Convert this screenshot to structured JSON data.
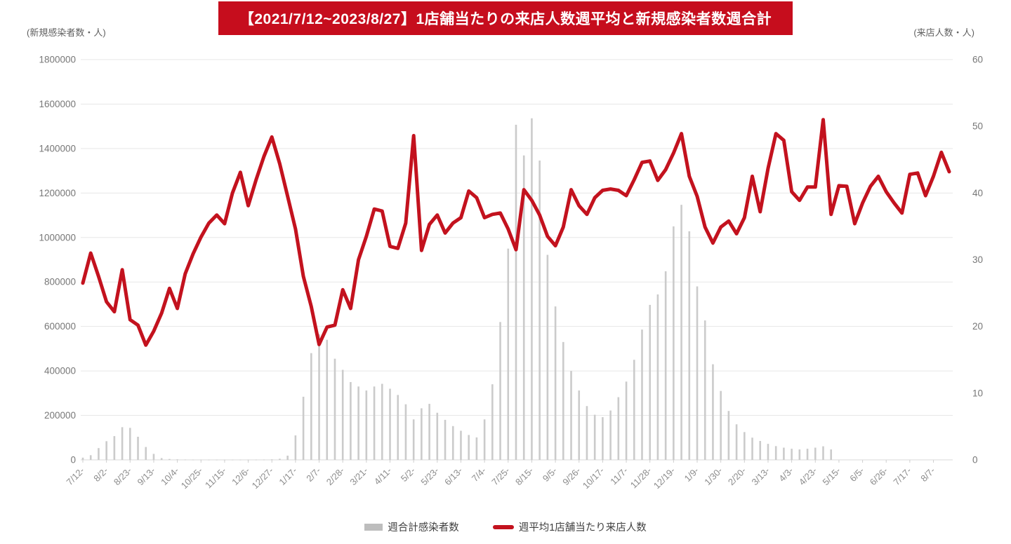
{
  "title": "【2021/7/12~2023/8/27】1店舗当たりの来店人数週平均と新規感染者数週合計",
  "colors": {
    "title_bg": "#c60d1d",
    "line_red": "#c3121e",
    "bar_gray": "#cbcbcb",
    "grid": "#e7e7e7",
    "axis_text": "#777777",
    "x_label_text": "#8c8c8c",
    "legend_text": "#3f3f3f"
  },
  "legend": {
    "bars_label": "週合計感染者数",
    "line_label": "週平均1店舗当たり来店人数"
  },
  "chart_data": {
    "type": "combo (bar + line, dual axis)",
    "title": "【2021/7/12~2023/8/27】1店舗当たりの来店人数週平均と新規感染者数週合計",
    "grid": true,
    "legend_position": "bottom",
    "n_weeks": 111,
    "x_tick_interval": 3,
    "x_tick_labels": [
      "7/12-",
      "8/2-",
      "8/23-",
      "9/13-",
      "10/4-",
      "10/25-",
      "11/15-",
      "12/6-",
      "12/27-",
      "1/17-",
      "2/7-",
      "2/28-",
      "3/21-",
      "4/11-",
      "5/2-",
      "5/23-",
      "6/13-",
      "7/4-",
      "7/25-",
      "8/15-",
      "9/5-",
      "9/26-",
      "10/17-",
      "11/7-",
      "11/28-",
      "12/19-",
      "1/9-",
      "1/30-",
      "2/20-",
      "3/13-",
      "4/3-",
      "4/23-",
      "5/15-",
      "6/5-",
      "6/26-",
      "7/17-",
      "8/7-"
    ],
    "left_axis": {
      "label": "(新規感染者数・人)",
      "min": 0,
      "max": 1800000,
      "step": 200000,
      "tick_labels": [
        "0",
        "200000",
        "400000",
        "600000",
        "800000",
        "1000000",
        "1200000",
        "1400000",
        "1600000",
        "1800000"
      ]
    },
    "right_axis": {
      "label": "(来店人数・人)",
      "min": 0,
      "max": 60,
      "step": 10,
      "tick_labels": [
        "0",
        "10",
        "20",
        "30",
        "40",
        "50",
        "60"
      ]
    },
    "series": [
      {
        "name": "週合計感染者数",
        "type": "bar",
        "axis": "left",
        "values": [
          10000,
          21000,
          53000,
          84000,
          107000,
          147000,
          144000,
          104000,
          58000,
          27000,
          8000,
          4000,
          2500,
          1800,
          1200,
          1000,
          900,
          900,
          1000,
          900,
          1000,
          1100,
          1300,
          1600,
          2500,
          5000,
          19000,
          110000,
          284000,
          480000,
          565000,
          540000,
          455000,
          405000,
          350000,
          330000,
          312000,
          330000,
          342000,
          320000,
          292000,
          250000,
          182000,
          232000,
          252000,
          212000,
          180000,
          152000,
          131000,
          112000,
          101000,
          182000,
          340000,
          620000,
          950000,
          1507000,
          1369000,
          1536000,
          1346000,
          922000,
          690000,
          530000,
          400000,
          312000,
          242000,
          203000,
          192000,
          222000,
          282000,
          352000,
          450000,
          586000,
          697000,
          744000,
          848000,
          1050000,
          1147000,
          1028000,
          780000,
          627000,
          430000,
          310000,
          220000,
          160000,
          125000,
          100000,
          85000,
          72000,
          62000,
          55000,
          50000,
          47000,
          50000,
          55000,
          61000,
          47000,
          null,
          null,
          null,
          null,
          null,
          null,
          null,
          null,
          null,
          null,
          null,
          null,
          null,
          null,
          null
        ]
      },
      {
        "name": "週平均1店舗当たり来店人数",
        "type": "line",
        "axis": "right",
        "values": [
          26.5,
          31,
          27.5,
          23.7,
          22.2,
          28.5,
          21,
          20.2,
          17.2,
          19.3,
          22,
          25.7,
          22.7,
          27.9,
          30.9,
          33.4,
          35.5,
          36.7,
          35.4,
          40,
          43.1,
          38.1,
          42,
          45.5,
          48.4,
          44.4,
          39.5,
          34.6,
          27.5,
          23,
          17.3,
          19.9,
          20.2,
          25.5,
          22.7,
          30,
          33.5,
          37.6,
          37.3,
          32,
          31.7,
          35.5,
          48.6,
          31.4,
          35.3,
          36.7,
          34,
          35.5,
          36.3,
          40.3,
          39.3,
          36.3,
          36.8,
          37,
          34.6,
          31.5,
          40.5,
          38.9,
          36.7,
          33.5,
          32.1,
          34.9,
          40.5,
          38.1,
          36.8,
          39.3,
          40.4,
          40.6,
          40.4,
          39.6,
          42,
          44.6,
          44.8,
          41.9,
          43.5,
          46,
          48.9,
          42.5,
          39.5,
          34.9,
          32.5,
          34.9,
          35.8,
          33.9,
          36.3,
          42.5,
          37.2,
          43.7,
          48.9,
          47.9,
          40.2,
          38.9,
          40.9,
          40.9,
          51,
          36.8,
          41.1,
          41,
          35.4,
          38.5,
          41,
          42.5,
          40.2,
          38.5,
          37,
          42.8,
          43,
          39.6,
          42.5,
          46.1,
          43.2
        ]
      }
    ]
  }
}
